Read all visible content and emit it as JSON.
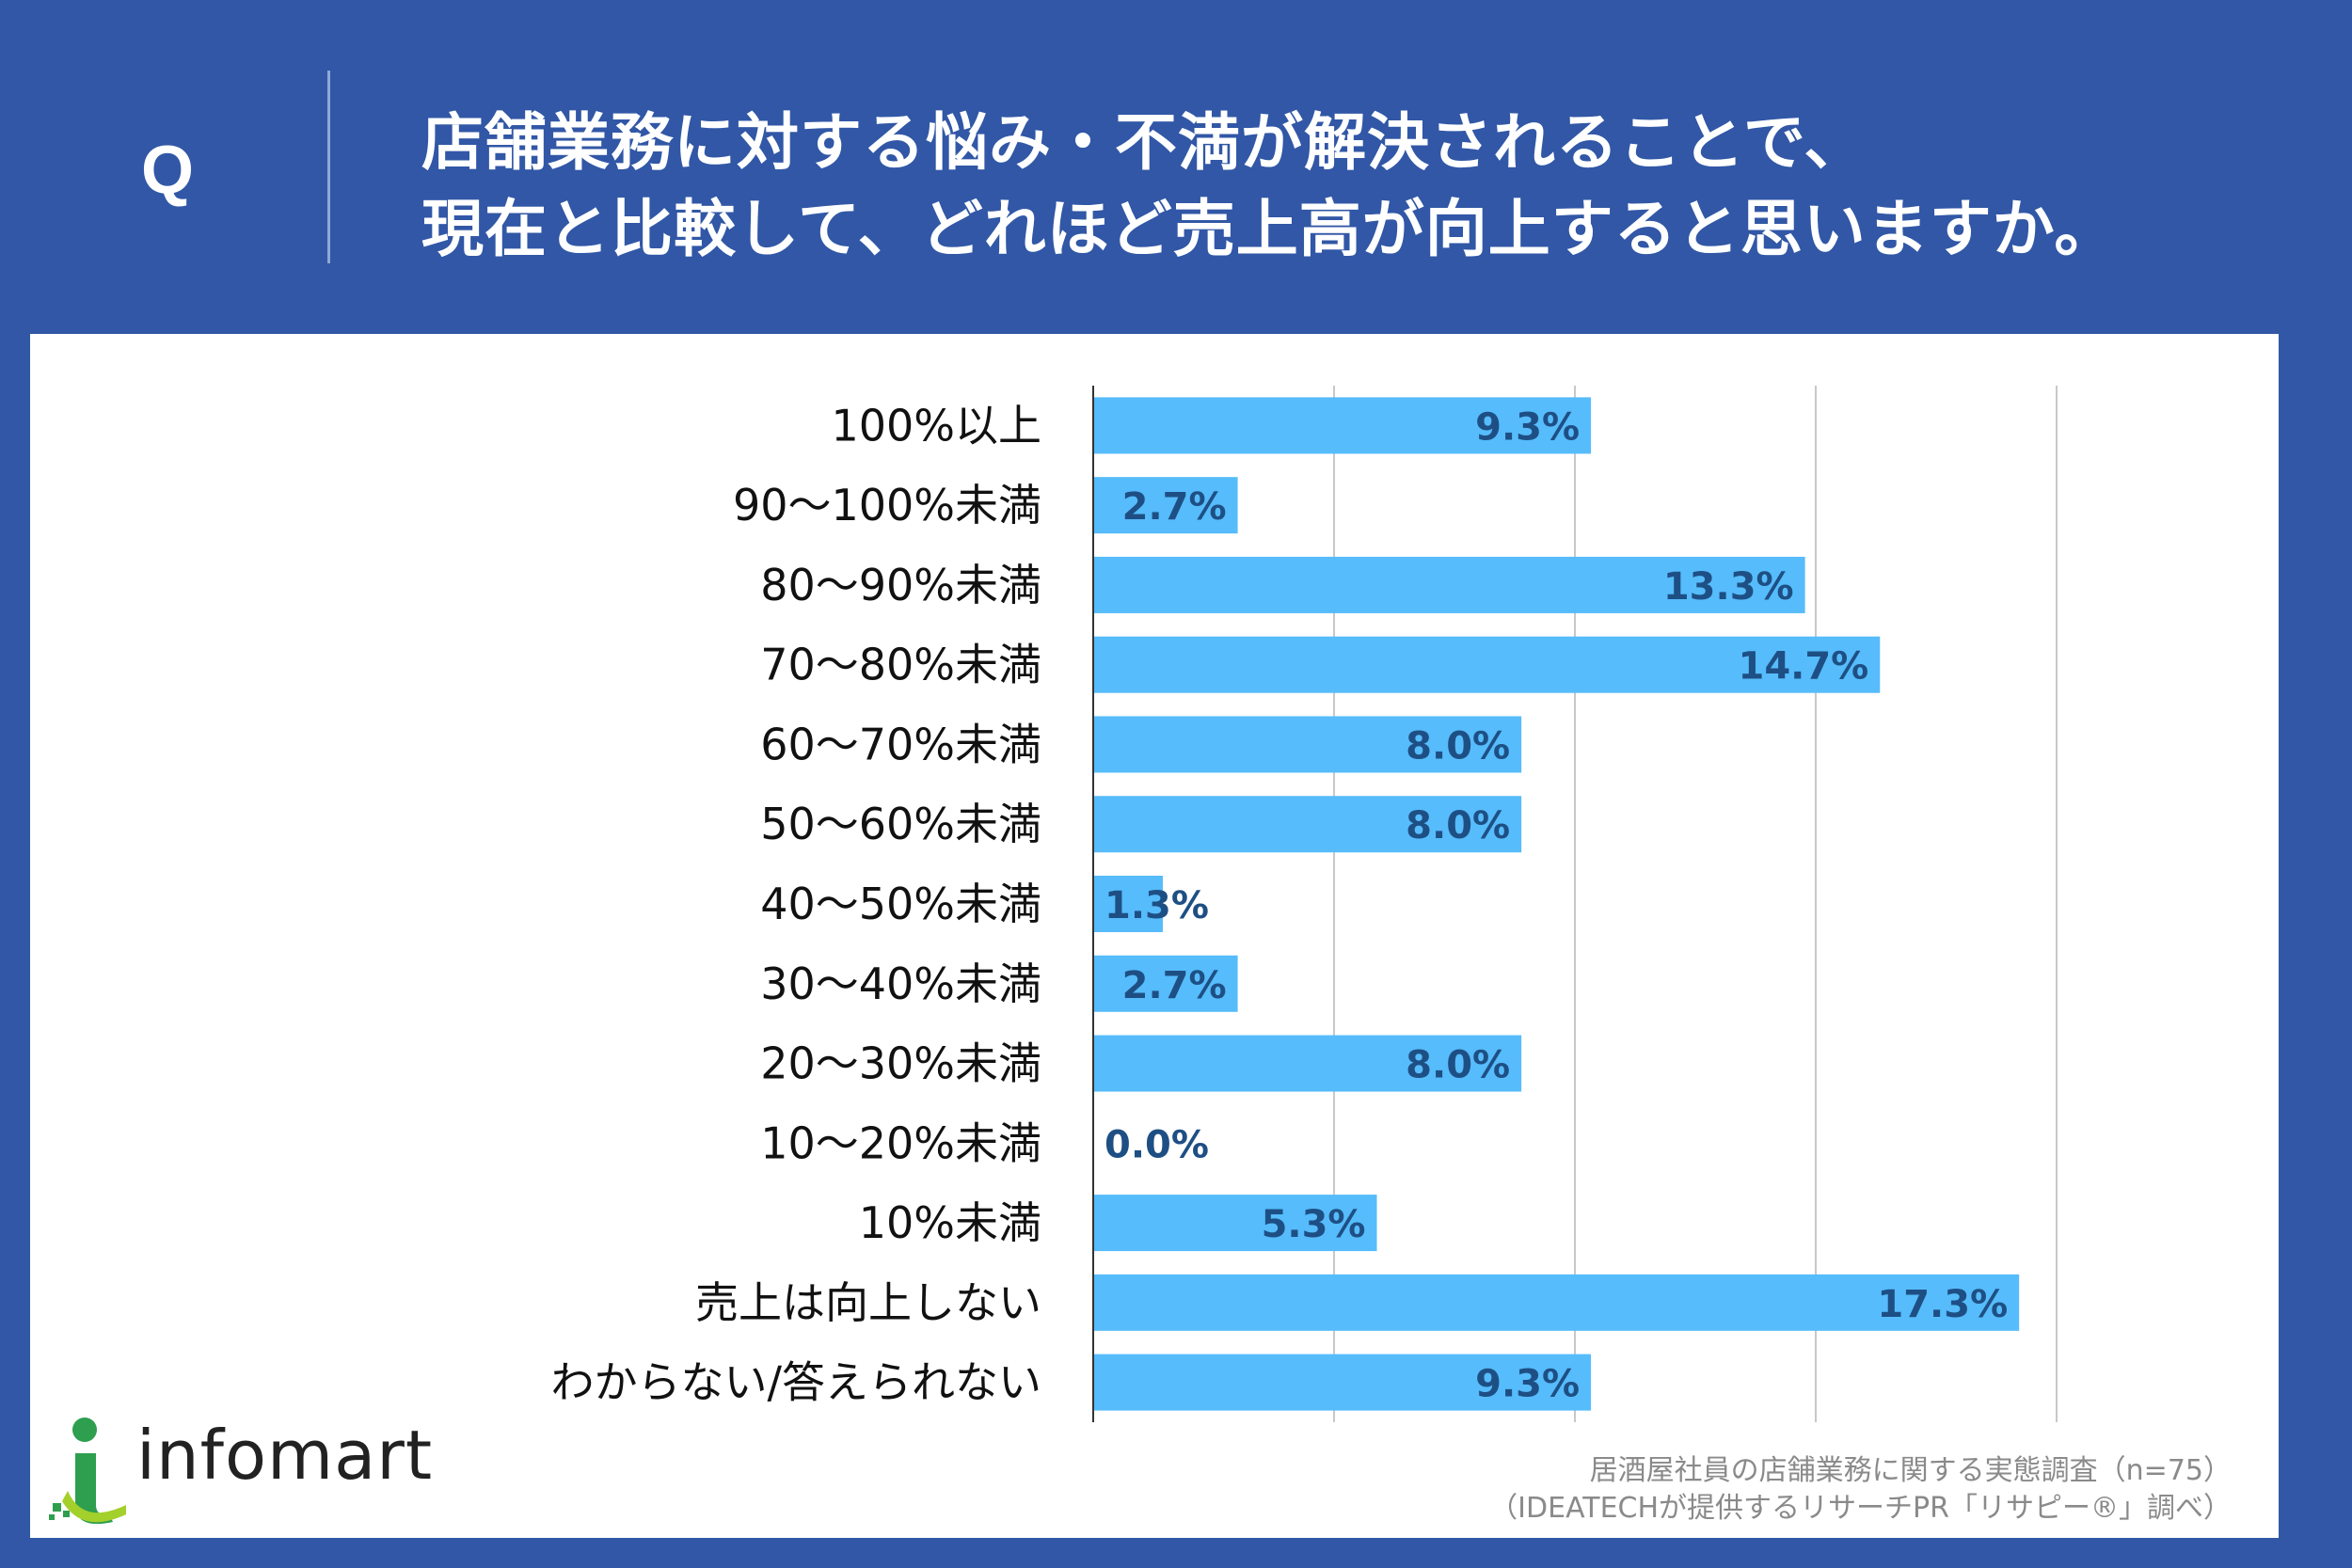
{
  "question": {
    "label": "Q",
    "line1": "店舗業務に対する悩み・不満が解決されることで、",
    "line2": "現在と比較して、どれほど売上高が向上すると思いますか。"
  },
  "chart_data": {
    "type": "bar",
    "orientation": "horizontal",
    "categories": [
      "100%以上",
      "90～100%未満",
      "80～90%未満",
      "70～80%未満",
      "60～70%未満",
      "50～60%未満",
      "40～50%未満",
      "30～40%未満",
      "20～30%未満",
      "10～20%未満",
      "10%未満",
      "売上は向上しない",
      "わからない/答えられない"
    ],
    "values": [
      9.3,
      2.7,
      13.3,
      14.7,
      8.0,
      8.0,
      1.3,
      2.7,
      8.0,
      0.0,
      5.3,
      17.3,
      9.3
    ],
    "value_labels": [
      "9.3%",
      "2.7%",
      "13.3%",
      "14.7%",
      "8.0%",
      "8.0%",
      "1.3%",
      "2.7%",
      "8.0%",
      "0.0%",
      "5.3%",
      "17.3%",
      "9.3%"
    ],
    "xlim": [
      0,
      22.5
    ],
    "gridlines": [
      0,
      4.5,
      9,
      13.5,
      18,
      22.5
    ],
    "grid": true,
    "bar_color": "#56bcfb",
    "label_color": "#1e4f84"
  },
  "logo": {
    "text": "infomart"
  },
  "source": {
    "line1": "居酒屋社員の店舗業務に関する実態調査（n=75）",
    "line2": "（IDEATECHが提供するリサーチPR「リサピー®」調べ）"
  },
  "colors": {
    "background": "#3157a6",
    "panel": "#ffffff",
    "logo_green": "#2e9e4f",
    "logo_lime": "#a3d02a"
  }
}
